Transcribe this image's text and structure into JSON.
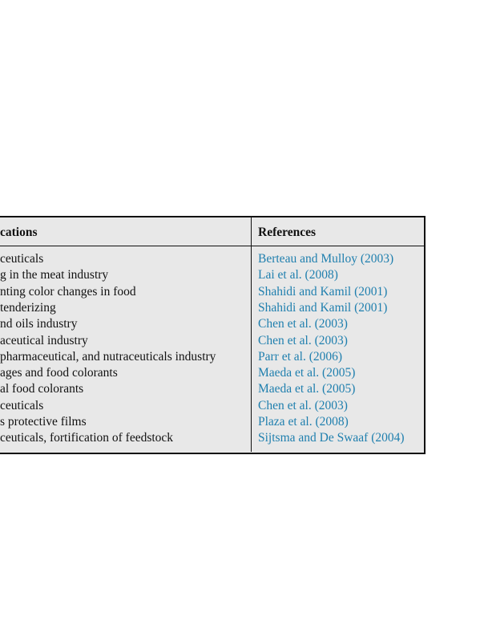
{
  "table": {
    "header": [
      "cations",
      "References"
    ],
    "rows": [
      [
        "ceuticals",
        "Berteau and Mulloy (2003)"
      ],
      [
        "g in the meat industry",
        "Lai et al. (2008)"
      ],
      [
        "nting color changes in food",
        "Shahidi and Kamil (2001)"
      ],
      [
        "tenderizing",
        "Shahidi and Kamil (2001)"
      ],
      [
        "nd oils industry",
        "Chen et al. (2003)"
      ],
      [
        "aceutical industry",
        "Chen et al. (2003)"
      ],
      [
        "pharmaceutical, and nutraceuticals industry",
        "Parr et al. (2006)"
      ],
      [
        "ages and food colorants",
        "Maeda et al. (2005)"
      ],
      [
        "al food colorants",
        "Maeda et al. (2005)"
      ],
      [
        "ceuticals",
        "Chen et al. (2003)"
      ],
      [
        "s protective films",
        "Plaza et al. (2008)"
      ],
      [
        "ceuticals, fortification of feedstock",
        "Sijtsma and De Swaaf (2004)"
      ]
    ]
  }
}
